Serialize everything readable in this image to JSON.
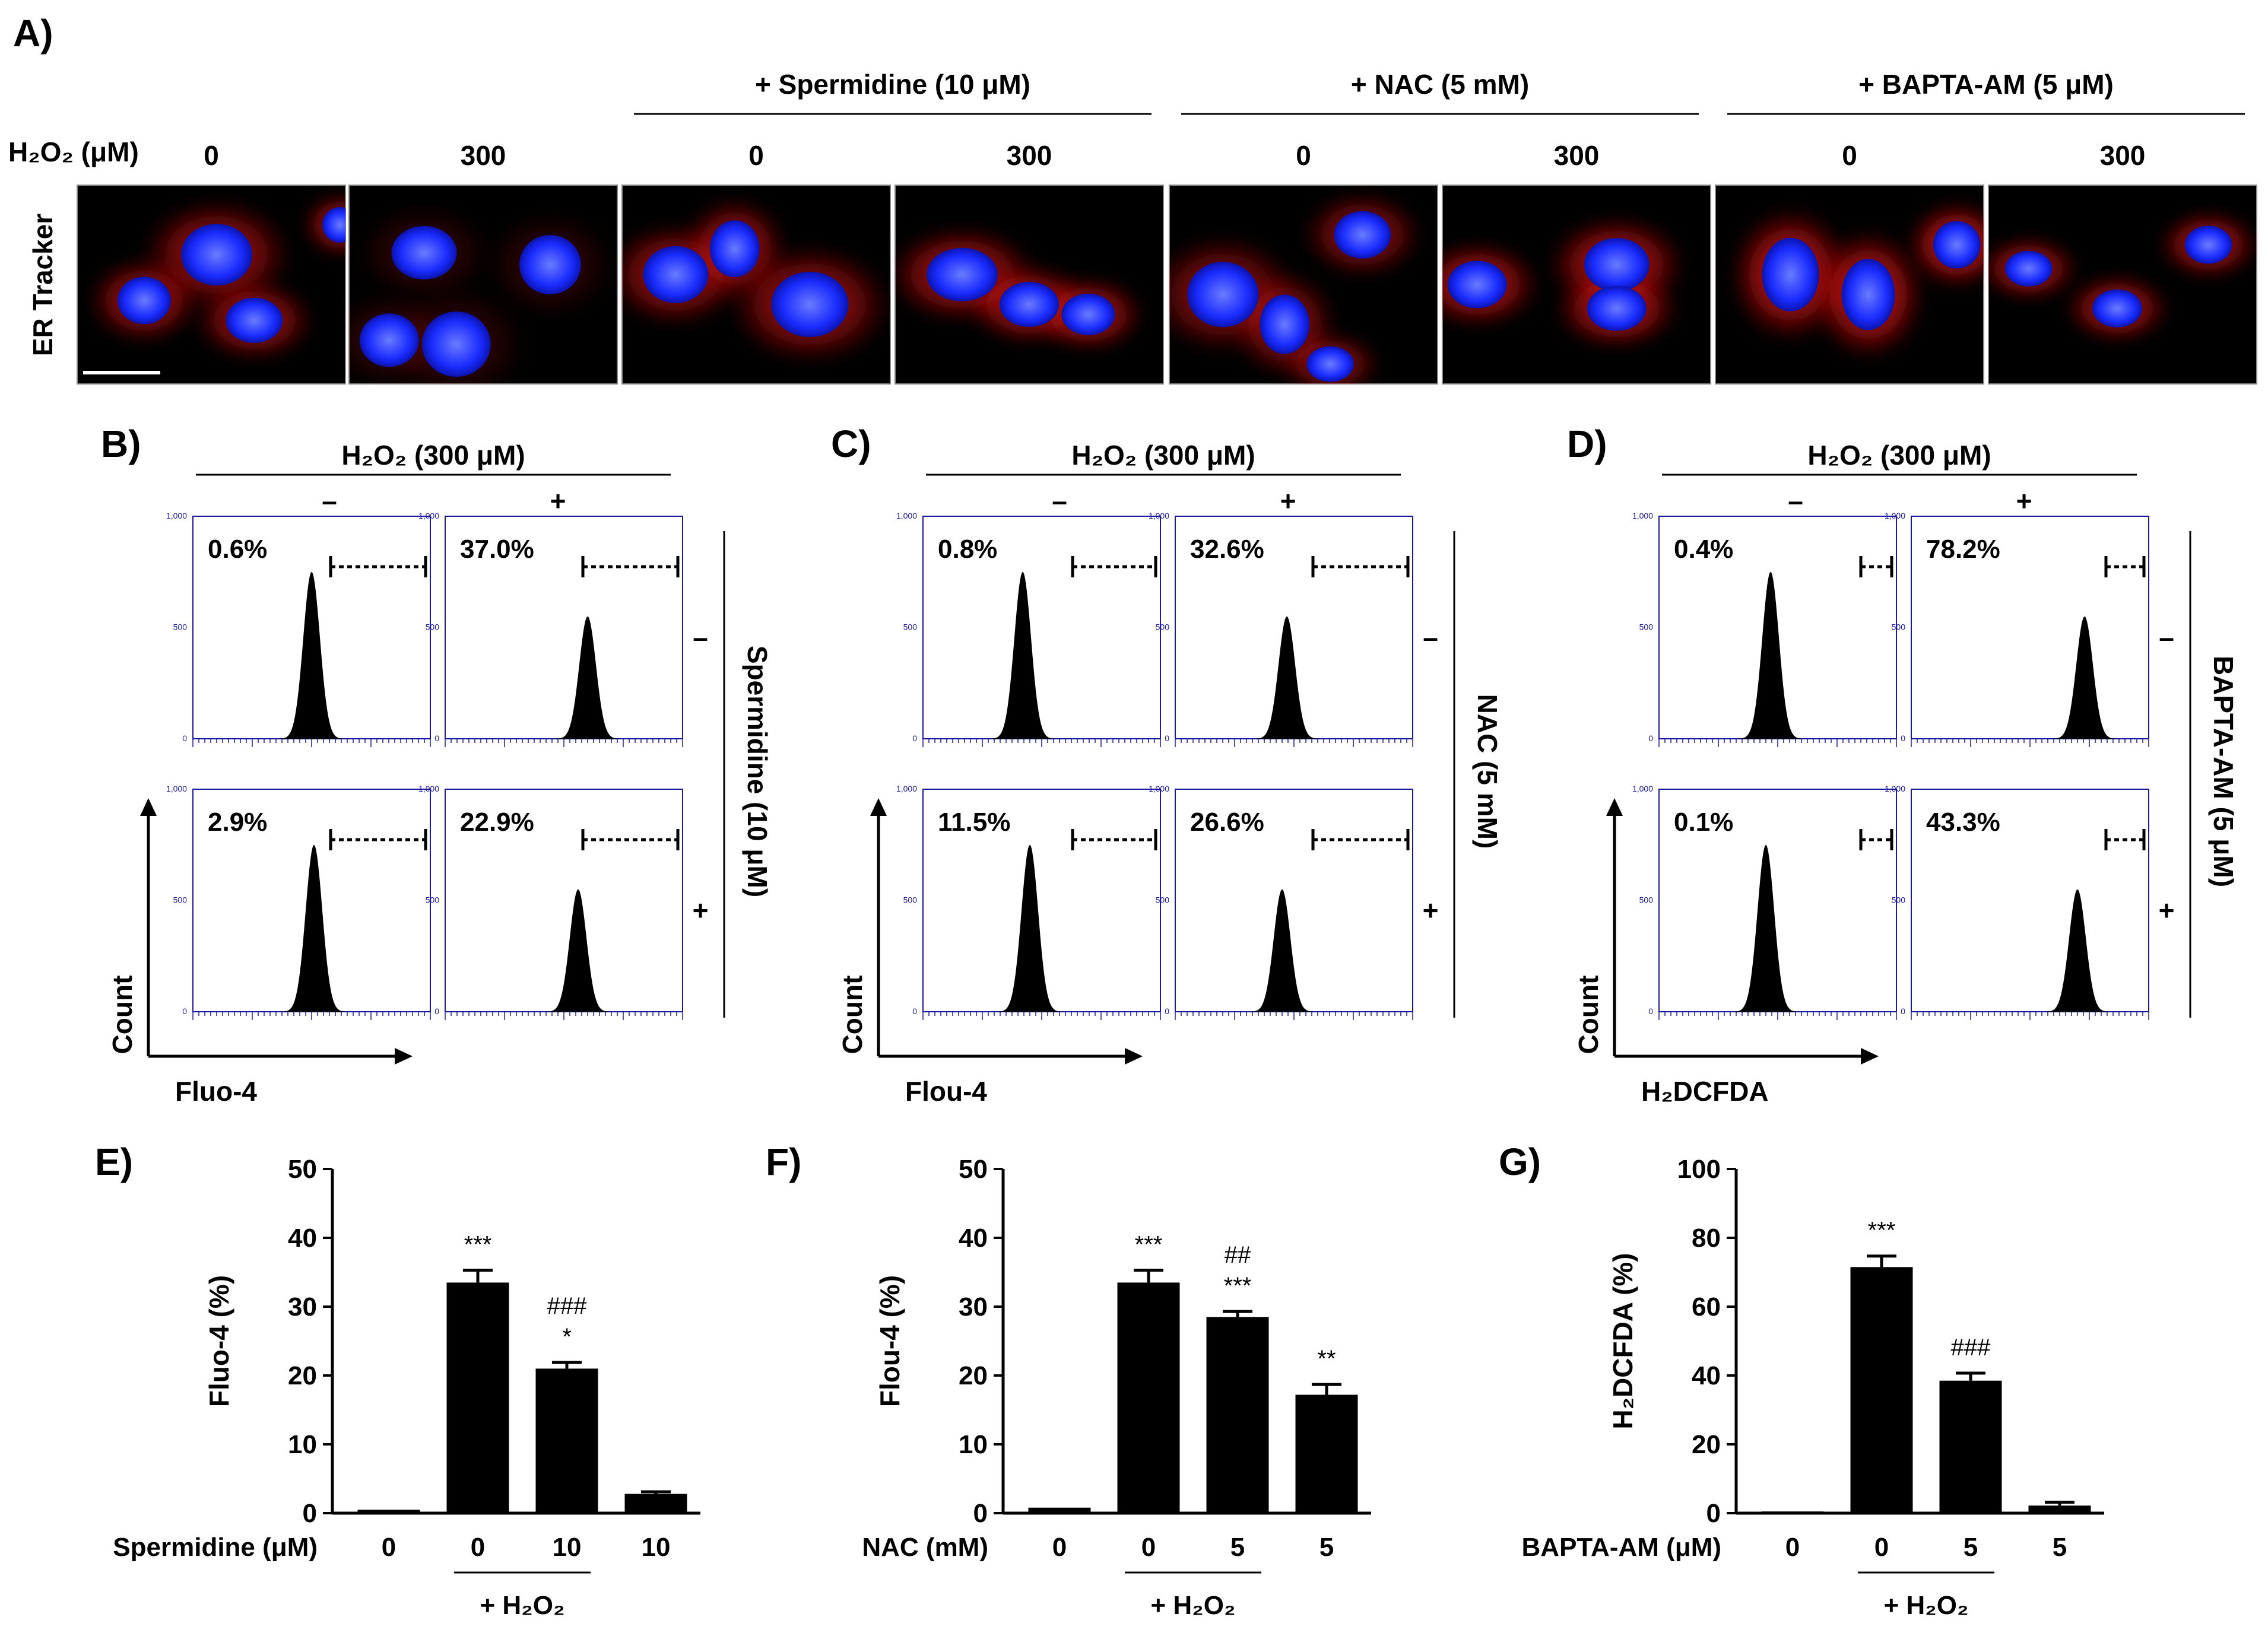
{
  "panel_a": {
    "label": "A)",
    "row_label": "ER Tracker",
    "dose_label": "H₂O₂ (μM)",
    "groups": [
      "+ Spermidine (10 μM)",
      "+ NAC (5 mM)",
      "+ BAPTA-AM (5 μM)"
    ],
    "doses": [
      "0",
      "300",
      "0",
      "300",
      "0",
      "300",
      "0",
      "300"
    ],
    "colors": {
      "nuclei": "#1a2cff",
      "er": "#d01010",
      "background": "#000000"
    }
  },
  "flow_panels": [
    {
      "label": "B)",
      "header": "H₂O₂ (300 μM)",
      "col_signs": [
        "–",
        "+"
      ],
      "side_label": "Spermidine (10 μM)",
      "row_signs": [
        "–",
        "+"
      ],
      "x_axis": "Fluo-4",
      "y_axis": "Count",
      "percentages": [
        "0.6%",
        "37.0%",
        "2.9%",
        "22.9%"
      ],
      "peak_positions": [
        0.5,
        0.6,
        0.51,
        0.56
      ],
      "gate_start": [
        0.58,
        0.58,
        0.58,
        0.58
      ]
    },
    {
      "label": "C)",
      "header": "H₂O₂ (300 μM)",
      "col_signs": [
        "–",
        "+"
      ],
      "side_label": "NAC (5 mM)",
      "row_signs": [
        "–",
        "+"
      ],
      "x_axis": "Flou-4",
      "y_axis": "Count",
      "percentages": [
        "0.8%",
        "32.6%",
        "11.5%",
        "26.6%"
      ],
      "peak_positions": [
        0.42,
        0.47,
        0.45,
        0.45
      ],
      "gate_start": [
        0.63,
        0.58,
        0.63,
        0.58
      ]
    },
    {
      "label": "D)",
      "header": "H₂O₂ (300 μM)",
      "col_signs": [
        "–",
        "+"
      ],
      "side_label": "BAPTA-AM (5 μM)",
      "row_signs": [
        "–",
        "+"
      ],
      "x_axis": "H₂DCFDA",
      "y_axis": "Count",
      "percentages": [
        "0.4%",
        "78.2%",
        "0.1%",
        "43.3%"
      ],
      "peak_positions": [
        0.47,
        0.73,
        0.45,
        0.7
      ],
      "gate_start": [
        0.85,
        0.82,
        0.85,
        0.82
      ]
    }
  ],
  "flow_axis": {
    "y_ticks": [
      "0",
      "500",
      "1,000"
    ]
  },
  "chart_data": [
    {
      "type": "bar",
      "panel": "E)",
      "ylabel": "Fluo-4 (%)",
      "ylim": [
        0,
        50
      ],
      "yticks": [
        0,
        10,
        20,
        30,
        40,
        50
      ],
      "row_label": "Spermidine (μM)",
      "categories": [
        "0",
        "0",
        "10",
        "10"
      ],
      "values": [
        0.5,
        33.5,
        21,
        2.8
      ],
      "errors": [
        0,
        1.8,
        0.9,
        0.3
      ],
      "annotations": [
        "",
        "***",
        "*",
        ""
      ],
      "annotations2": [
        "",
        "",
        "###",
        ""
      ],
      "group_label": "+ H₂O₂"
    },
    {
      "type": "bar",
      "panel": "F)",
      "ylabel": "Flou-4 (%)",
      "ylim": [
        0,
        50
      ],
      "yticks": [
        0,
        10,
        20,
        30,
        40,
        50
      ],
      "row_label": "NAC (mM)",
      "categories": [
        "0",
        "0",
        "5",
        "5"
      ],
      "values": [
        0.8,
        33.5,
        28.5,
        17.2
      ],
      "errors": [
        0,
        1.8,
        0.8,
        1.5
      ],
      "annotations": [
        "",
        "***",
        "***",
        "**"
      ],
      "annotations2": [
        "",
        "",
        "##",
        ""
      ],
      "group_label": "+ H₂O₂"
    },
    {
      "type": "bar",
      "panel": "G)",
      "ylabel": "H₂DCFDA (%)",
      "ylim": [
        0,
        100
      ],
      "yticks": [
        0,
        20,
        40,
        60,
        80,
        100
      ],
      "row_label": "BAPTA-AM (μM)",
      "categories": [
        "0",
        "0",
        "5",
        "5"
      ],
      "values": [
        0.5,
        71.5,
        38.5,
        2.2
      ],
      "errors": [
        0,
        3.2,
        2.2,
        1.0
      ],
      "annotations": [
        "",
        "***",
        "###",
        ""
      ],
      "annotations2": [
        "",
        "",
        "",
        ""
      ],
      "group_label": "+ H₂O₂"
    }
  ]
}
